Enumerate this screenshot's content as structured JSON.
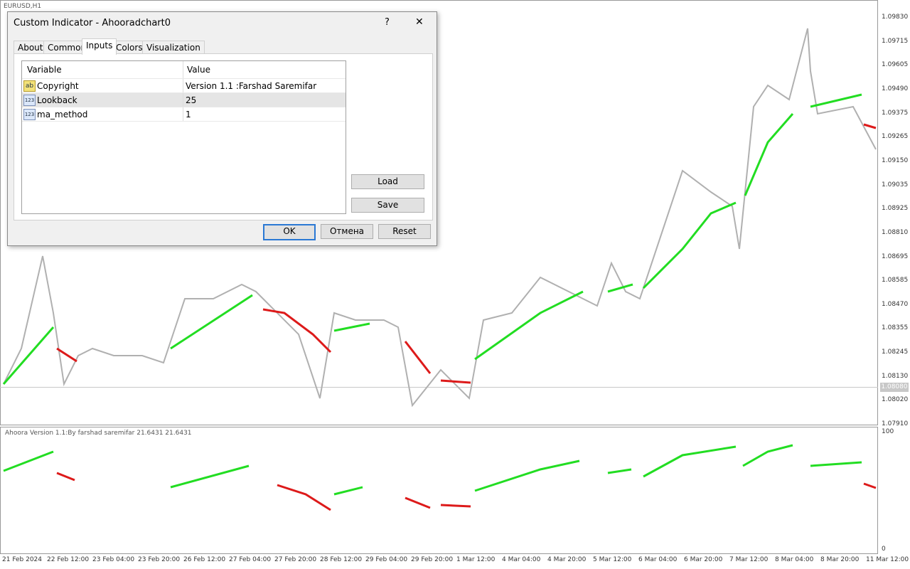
{
  "chart": {
    "symbol": "EURUSD,H1",
    "price_labels": [
      "1.09830",
      "1.09715",
      "1.09605",
      "1.09490",
      "1.09375",
      "1.09265",
      "1.09150",
      "1.09035",
      "1.08925",
      "1.08810",
      "1.08695",
      "1.08585",
      "1.08470",
      "1.08355",
      "1.08245",
      "1.08130",
      "1.08020",
      "1.07910"
    ],
    "current_price": "1.08080",
    "time_labels": [
      "21 Feb 2024",
      "22 Feb 12:00",
      "23 Feb 04:00",
      "23 Feb 20:00",
      "26 Feb 12:00",
      "27 Feb 04:00",
      "27 Feb 20:00",
      "28 Feb 12:00",
      "29 Feb 04:00",
      "29 Feb 20:00",
      "1 Mar 12:00",
      "4 Mar 04:00",
      "4 Mar 20:00",
      "5 Mar 12:00",
      "6 Mar 04:00",
      "6 Mar 20:00",
      "7 Mar 12:00",
      "8 Mar 04:00",
      "8 Mar 20:00",
      "11 Mar 12:00"
    ],
    "indicator_label": "Ahoora Version 1.1:By farshad saremifar  21.6431 21.6431",
    "indicator_scale": [
      "100",
      "0"
    ]
  },
  "dialog": {
    "title": "Custom Indicator - Ahooradchart0",
    "help": "?",
    "close": "✕",
    "tabs": [
      "About",
      "Common",
      "Inputs",
      "Colors",
      "Visualization"
    ],
    "active_tab": 2,
    "table": {
      "headers": [
        "Variable",
        "Value"
      ],
      "rows": [
        {
          "icon": "ab",
          "variable": "Copyright",
          "value": "Version 1.1 :Farshad Saremifar"
        },
        {
          "icon": "123",
          "variable": "Lookback",
          "value": "25"
        },
        {
          "icon": "123",
          "variable": "ma_method",
          "value": "1"
        }
      ],
      "selected_row": 1
    },
    "side_buttons": [
      "Load",
      "Save"
    ],
    "footer_buttons": [
      "OK",
      "Отмена",
      "Reset"
    ]
  }
}
